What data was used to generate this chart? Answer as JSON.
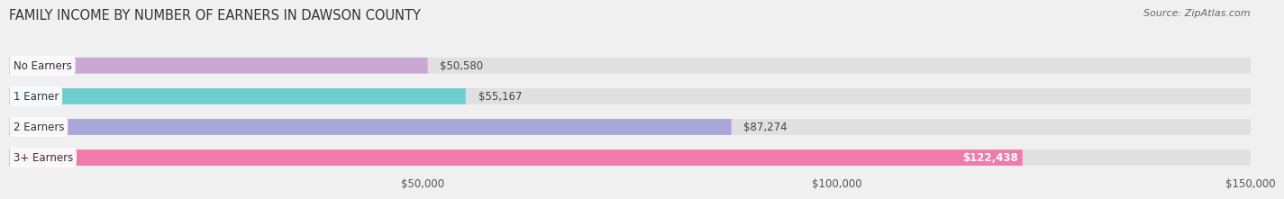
{
  "title": "FAMILY INCOME BY NUMBER OF EARNERS IN DAWSON COUNTY",
  "source": "Source: ZipAtlas.com",
  "categories": [
    "No Earners",
    "1 Earner",
    "2 Earners",
    "3+ Earners"
  ],
  "values": [
    50580,
    55167,
    87274,
    122438
  ],
  "bar_colors": [
    "#c9a8d4",
    "#6ecece",
    "#a8a8d8",
    "#f07aaa"
  ],
  "label_colors": [
    "#444444",
    "#444444",
    "#444444",
    "#ffffff"
  ],
  "value_labels": [
    "$50,580",
    "$55,167",
    "$87,274",
    "$122,438"
  ],
  "xlim_min": 0,
  "xlim_max": 150000,
  "xticks": [
    50000,
    100000,
    150000
  ],
  "xtick_labels": [
    "$50,000",
    "$100,000",
    "$150,000"
  ],
  "bg_color": "#f0f0f0",
  "bar_bg_color": "#e0e0e0",
  "title_fontsize": 10.5,
  "source_fontsize": 8,
  "label_fontsize": 8.5,
  "value_fontsize": 8.5
}
